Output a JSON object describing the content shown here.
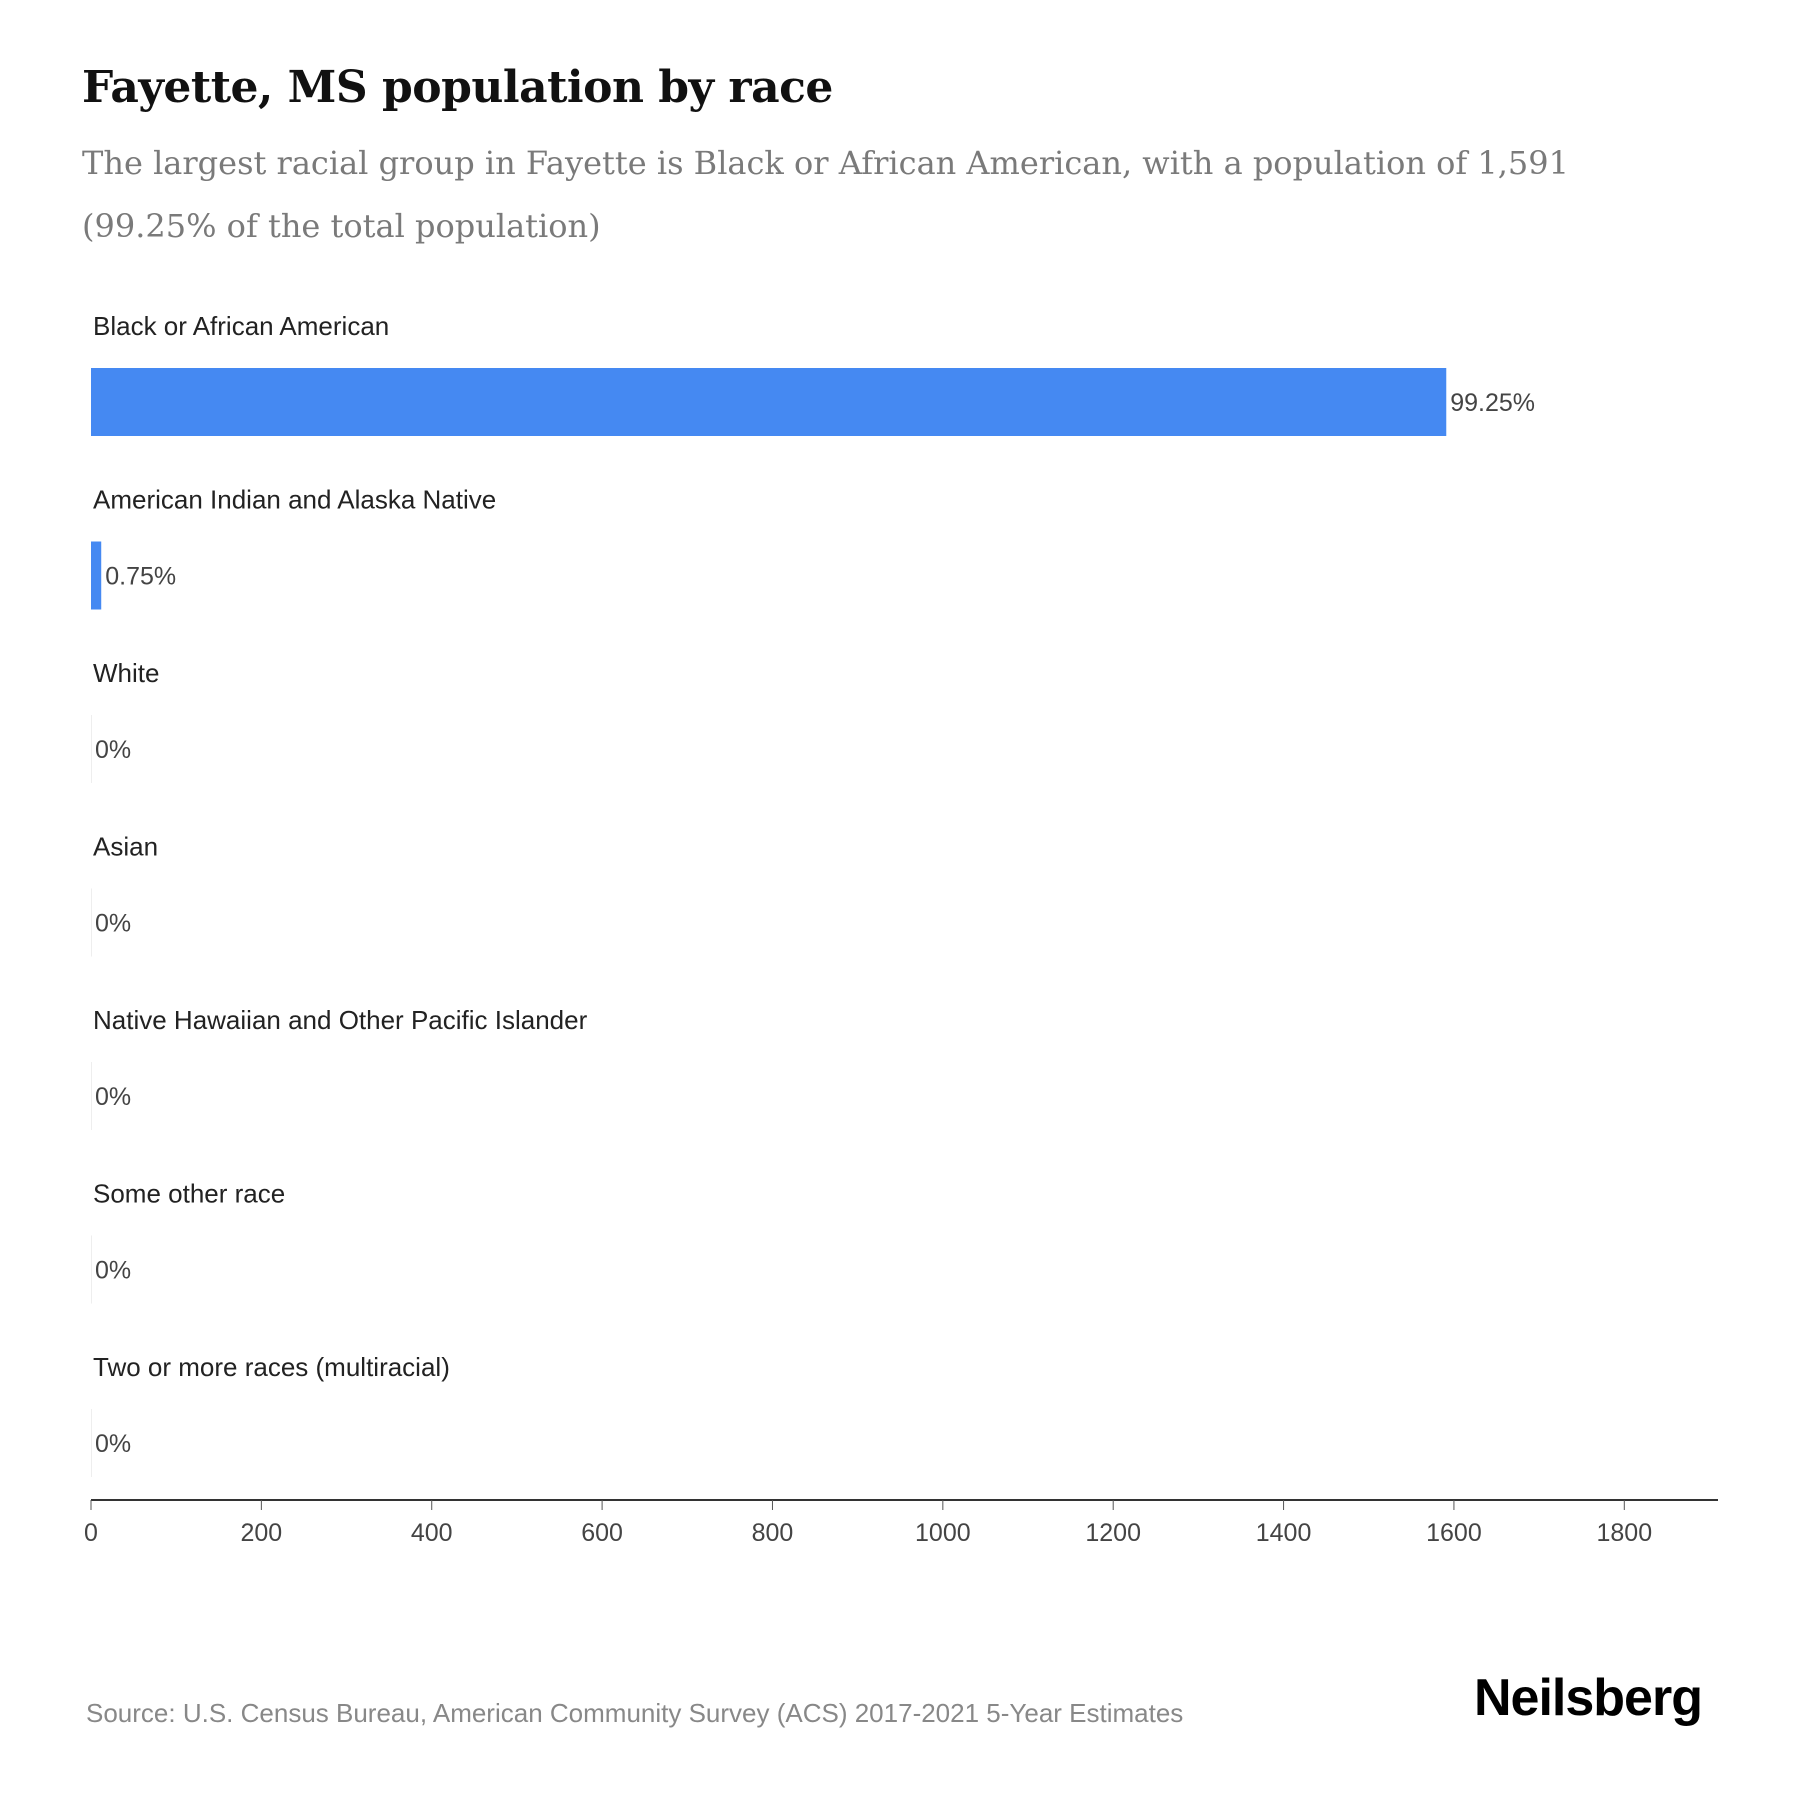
{
  "title": "Fayette, MS population by race",
  "subtitle": "The largest racial group in Fayette is Black or African American, with a population of 1,591 (99.25% of the total population)",
  "source": "Source: U.S. Census Bureau, American Community Survey (ACS) 2017-2021 5-Year Estimates",
  "logo": "Neilsberg",
  "chart_data": {
    "type": "bar",
    "orientation": "horizontal",
    "categories": [
      "Black or African American",
      "American Indian and Alaska Native",
      "White",
      "Asian",
      "Native Hawaiian and Other Pacific Islander",
      "Some other race",
      "Two or more races (multiracial)"
    ],
    "values": [
      1591,
      12,
      0,
      0,
      0,
      0,
      0
    ],
    "labels": [
      "99.25%",
      "0.75%",
      "0%",
      "0%",
      "0%",
      "0%",
      "0%"
    ],
    "xlim": [
      0,
      1910
    ],
    "xticks": [
      "0",
      "200",
      "400",
      "600",
      "800",
      "1000",
      "1200",
      "1400",
      "1600",
      "1800"
    ],
    "tick_values": [
      0,
      200,
      400,
      600,
      800,
      1000,
      1200,
      1400,
      1600,
      1800
    ],
    "bar_color": "#4589f2",
    "grid": false
  }
}
